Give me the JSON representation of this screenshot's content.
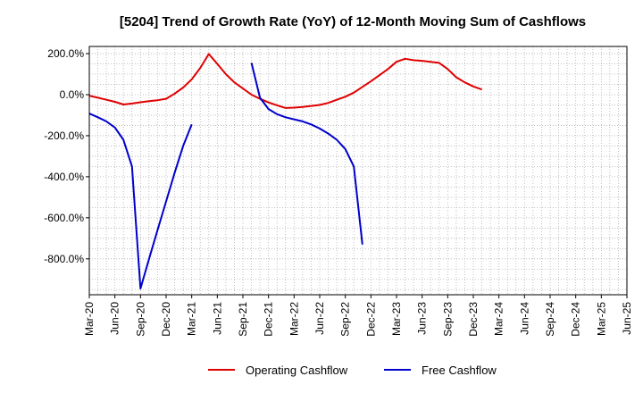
{
  "chart_data": {
    "type": "line",
    "title": "[5204]  Trend of Growth Rate (YoY) of 12-Month Moving Sum of Cashflows",
    "xlabel": "",
    "ylabel": "",
    "x_categories": [
      "Mar-20",
      "Jun-20",
      "Sep-20",
      "Dec-20",
      "Mar-21",
      "Jun-21",
      "Sep-21",
      "Dec-21",
      "Mar-22",
      "Jun-22",
      "Sep-22",
      "Dec-22",
      "Mar-23",
      "Jun-23",
      "Sep-23",
      "Dec-23",
      "Mar-24",
      "Jun-24",
      "Sep-24",
      "Dec-24",
      "Mar-25",
      "Jun-25"
    ],
    "y_ticks": [
      200,
      0,
      -200,
      -400,
      -600,
      -800
    ],
    "y_tick_labels": [
      "200.0%",
      "0.0%",
      "-200.0%",
      "-400.0%",
      "-600.0%",
      "-800.0%"
    ],
    "ylim": [
      -975,
      235
    ],
    "grid": true,
    "legend_position": "bottom",
    "series": [
      {
        "name": "Operating Cashflow",
        "color": "#e00000",
        "points": [
          [
            0,
            -5
          ],
          [
            1,
            -15
          ],
          [
            2,
            -25
          ],
          [
            3,
            -35
          ],
          [
            4,
            -48
          ],
          [
            5,
            -43
          ],
          [
            6,
            -37
          ],
          [
            7,
            -32
          ],
          [
            8,
            -27
          ],
          [
            9,
            -20
          ],
          [
            10,
            5
          ],
          [
            11,
            35
          ],
          [
            12,
            75
          ],
          [
            13,
            130
          ],
          [
            14,
            198
          ],
          [
            15,
            150
          ],
          [
            16,
            100
          ],
          [
            17,
            60
          ],
          [
            18,
            30
          ],
          [
            19,
            0
          ],
          [
            20,
            -20
          ],
          [
            21,
            -38
          ],
          [
            22,
            -52
          ],
          [
            23,
            -65
          ],
          [
            24,
            -63
          ],
          [
            25,
            -60
          ],
          [
            26,
            -55
          ],
          [
            27,
            -50
          ],
          [
            28,
            -40
          ],
          [
            29,
            -25
          ],
          [
            30,
            -10
          ],
          [
            31,
            10
          ],
          [
            32,
            38
          ],
          [
            33,
            65
          ],
          [
            34,
            95
          ],
          [
            35,
            125
          ],
          [
            36,
            160
          ],
          [
            37,
            175
          ],
          [
            38,
            168
          ],
          [
            39,
            165
          ],
          [
            40,
            160
          ],
          [
            41,
            155
          ],
          [
            42,
            125
          ],
          [
            43,
            85
          ],
          [
            44,
            60
          ],
          [
            45,
            40
          ],
          [
            46,
            25
          ]
        ]
      },
      {
        "name": "Free Cashflow",
        "color": "#0000cc",
        "points": [
          [
            0,
            -92
          ],
          [
            1,
            -110
          ],
          [
            2,
            -130
          ],
          [
            3,
            -160
          ],
          [
            4,
            -220
          ],
          [
            5,
            -350
          ],
          [
            6,
            -945
          ],
          [
            7,
            -800
          ],
          [
            8,
            -660
          ],
          [
            9,
            -520
          ],
          [
            10,
            -380
          ],
          [
            11,
            -250
          ],
          [
            12,
            -145
          ],
          null,
          [
            19,
            155
          ],
          [
            20,
            -15
          ],
          [
            21,
            -70
          ],
          [
            22,
            -95
          ],
          [
            23,
            -110
          ],
          [
            24,
            -120
          ],
          [
            25,
            -130
          ],
          [
            26,
            -145
          ],
          [
            27,
            -165
          ],
          [
            28,
            -190
          ],
          [
            29,
            -220
          ],
          [
            30,
            -265
          ],
          [
            31,
            -350
          ],
          [
            32,
            -730
          ]
        ]
      }
    ]
  }
}
